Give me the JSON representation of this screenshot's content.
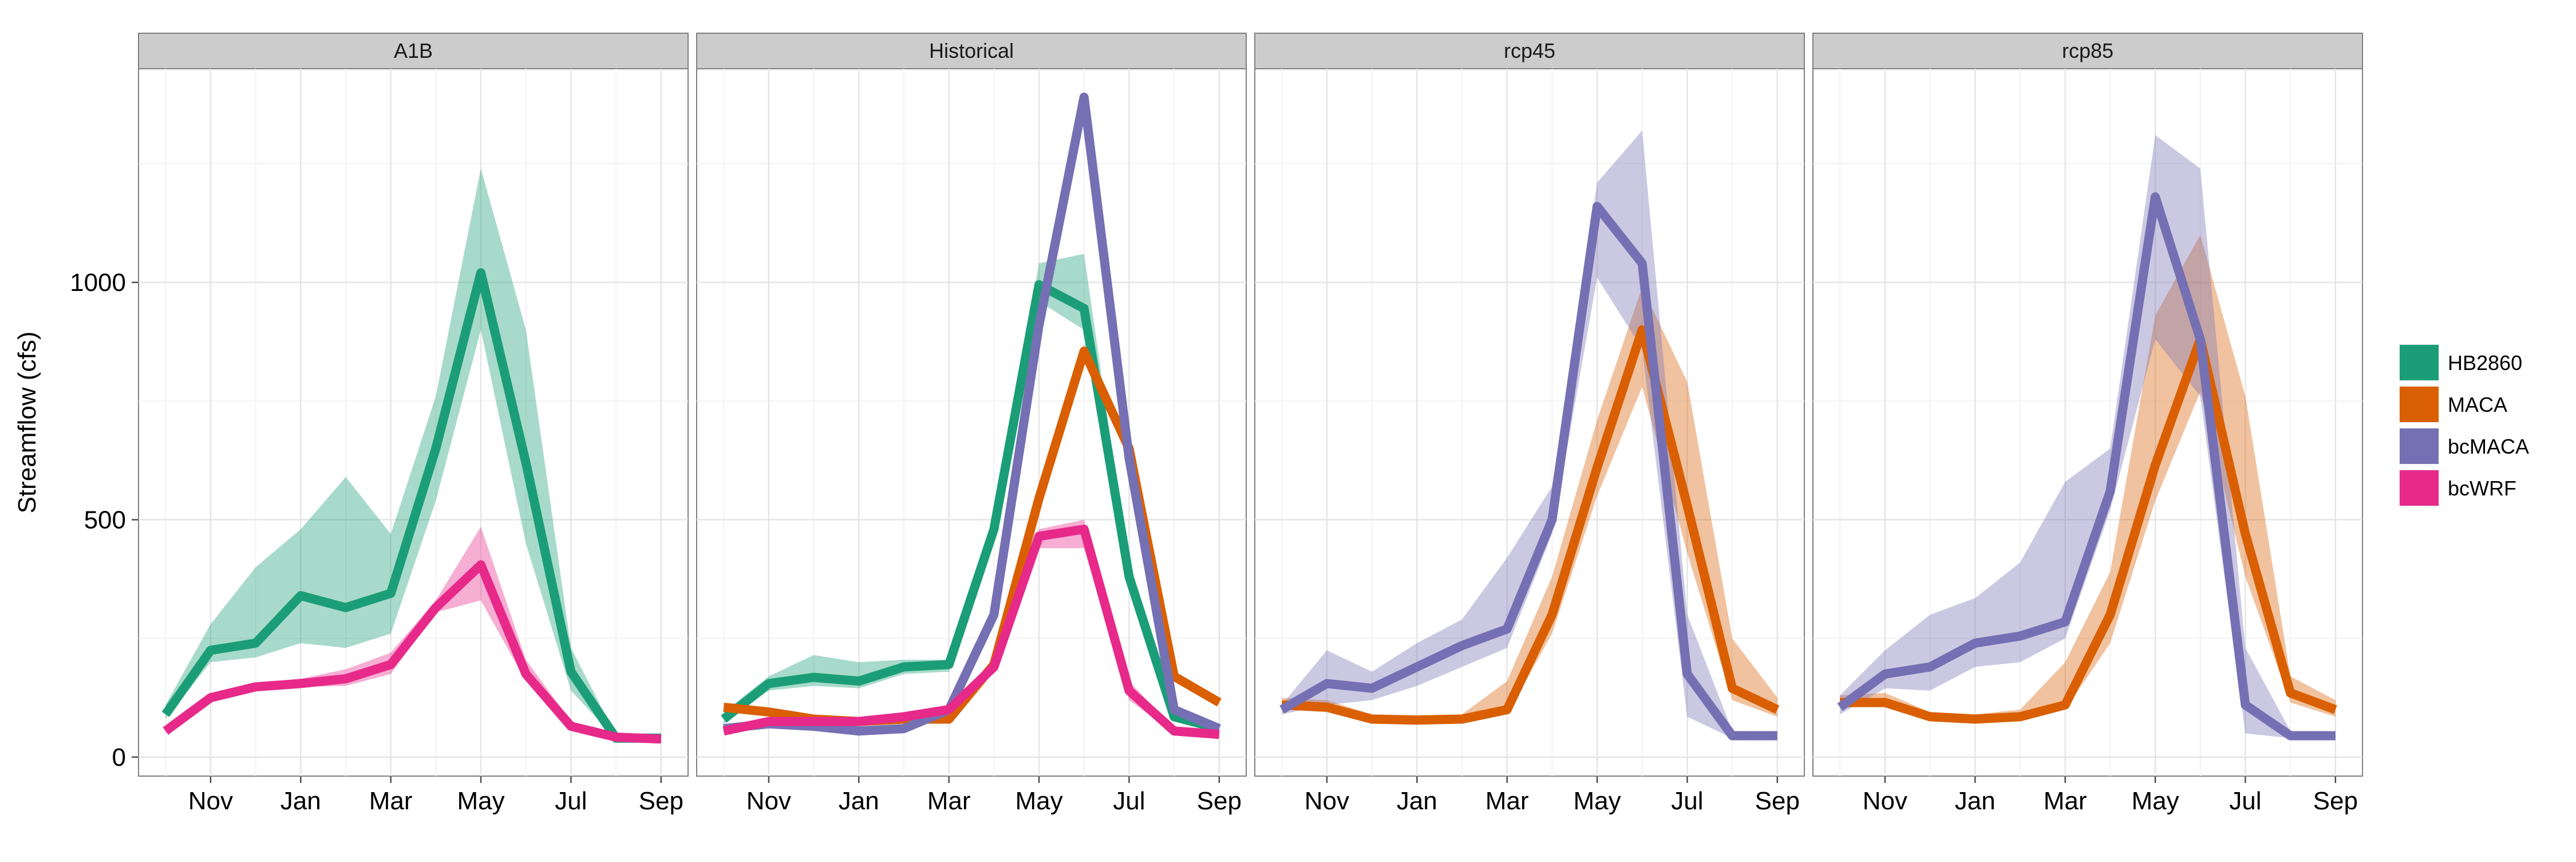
{
  "chart_data": {
    "type": "line",
    "ylabel": "Streamflow (cfs)",
    "xlabel": "",
    "x_tick_labels": [
      "Nov",
      "Jan",
      "Mar",
      "May",
      "Jul",
      "Sep"
    ],
    "x_tick_positions": [
      2,
      4,
      6,
      8,
      10,
      12
    ],
    "y_ticks": [
      0,
      500,
      1000
    ],
    "ylim": [
      -40,
      1450
    ],
    "xlim": [
      0.4,
      12.6
    ],
    "grid": true,
    "legend_position": "right",
    "legend": [
      {
        "name": "HB2860",
        "color": "#1b9e77"
      },
      {
        "name": "MACA",
        "color": "#d95f02"
      },
      {
        "name": "bcMACA",
        "color": "#7570b3"
      },
      {
        "name": "bcWRF",
        "color": "#e7298a"
      }
    ],
    "months": [
      1,
      2,
      3,
      4,
      5,
      6,
      7,
      8,
      9,
      10,
      11,
      12
    ],
    "panels": [
      {
        "title": "A1B",
        "series": [
          {
            "name": "HB2860",
            "color": "#1b9e77",
            "mean": [
              90,
              225,
              240,
              340,
              315,
              345,
              650,
              1020,
              620,
              180,
              40,
              40
            ],
            "min": [
              80,
              200,
              210,
              240,
              230,
              260,
              540,
              900,
              450,
              140,
              38,
              38
            ],
            "max": [
              110,
              280,
              400,
              480,
              590,
              470,
              760,
              1240,
              900,
              230,
              45,
              42
            ]
          },
          {
            "name": "bcWRF",
            "color": "#e7298a",
            "mean": [
              55,
              125,
              148,
              155,
              165,
              195,
              315,
              405,
              175,
              65,
              42,
              38
            ],
            "min": [
              50,
              115,
              140,
              148,
              150,
              175,
              305,
              330,
              160,
              60,
              40,
              36
            ],
            "max": [
              65,
              135,
              155,
              165,
              185,
              220,
              330,
              485,
              205,
              75,
              44,
              40
            ]
          }
        ]
      },
      {
        "title": "Historical",
        "series": [
          {
            "name": "HB2860",
            "color": "#1b9e77",
            "mean": [
              80,
              155,
              168,
              160,
              190,
              195,
              480,
              995,
              945,
              380,
              85,
              60
            ],
            "min": [
              70,
              140,
              150,
              145,
              175,
              180,
              470,
              960,
              900,
              360,
              75,
              55
            ],
            "max": [
              95,
              170,
              215,
              200,
              205,
              205,
              490,
              1040,
              1060,
              400,
              95,
              65
            ]
          },
          {
            "name": "MACA",
            "color": "#d95f02",
            "mean": [
              105,
              95,
              80,
              75,
              80,
              80,
              195,
              545,
              855,
              650,
              170,
              115
            ],
            "min": [
              100,
              90,
              75,
              70,
              75,
              75,
              190,
              530,
              840,
              640,
              165,
              110
            ],
            "max": [
              110,
              100,
              85,
              80,
              85,
              85,
              200,
              560,
              870,
              660,
              175,
              120
            ]
          },
          {
            "name": "bcMACA",
            "color": "#7570b3",
            "mean": [
              60,
              70,
              65,
              55,
              60,
              100,
              300,
              910,
              1390,
              630,
              100,
              60
            ],
            "min": [
              55,
              65,
              60,
              50,
              55,
              95,
              295,
              900,
              1380,
              620,
              95,
              55
            ],
            "max": [
              65,
              75,
              70,
              60,
              65,
              105,
              305,
              920,
              1400,
              640,
              105,
              65
            ]
          },
          {
            "name": "bcWRF",
            "color": "#e7298a",
            "mean": [
              55,
              75,
              75,
              75,
              85,
              100,
              190,
              465,
              480,
              140,
              55,
              48
            ],
            "min": [
              50,
              70,
              70,
              70,
              80,
              90,
              185,
              440,
              440,
              120,
              50,
              45
            ],
            "max": [
              60,
              80,
              80,
              80,
              95,
              110,
              200,
              480,
              500,
              160,
              60,
              52
            ]
          }
        ]
      },
      {
        "title": "rcp45",
        "series": [
          {
            "name": "MACA",
            "color": "#d95f02",
            "mean": [
              110,
              105,
              80,
              78,
              80,
              100,
              300,
              610,
              900,
              530,
              145,
              100
            ],
            "min": [
              100,
              95,
              72,
              70,
              72,
              90,
              260,
              550,
              780,
              430,
              120,
              85
            ],
            "max": [
              125,
              120,
              90,
              88,
              90,
              160,
              380,
              710,
              990,
              790,
              250,
              125
            ]
          },
          {
            "name": "bcMACA",
            "color": "#7570b3",
            "mean": [
              100,
              155,
              145,
              190,
              235,
              270,
              500,
              1160,
              1040,
              175,
              45,
              45
            ],
            "min": [
              90,
              110,
              120,
              150,
              190,
              230,
              470,
              1010,
              860,
              85,
              40,
              40
            ],
            "max": [
              110,
              225,
              180,
              240,
              290,
              420,
              570,
              1210,
              1320,
              300,
              55,
              50
            ]
          }
        ]
      },
      {
        "title": "rcp85",
        "series": [
          {
            "name": "MACA",
            "color": "#d95f02",
            "mean": [
              115,
              115,
              85,
              80,
              85,
              110,
              300,
              615,
              880,
              470,
              135,
              100
            ],
            "min": [
              105,
              105,
              77,
              72,
              77,
              100,
              240,
              540,
              770,
              380,
              115,
              85
            ],
            "max": [
              130,
              135,
              95,
              90,
              100,
              200,
              390,
              930,
              1100,
              760,
              170,
              120
            ]
          },
          {
            "name": "bcMACA",
            "color": "#7570b3",
            "mean": [
              105,
              175,
              190,
              240,
              255,
              285,
              560,
              1180,
              880,
              110,
              45,
              45
            ],
            "min": [
              90,
              145,
              140,
              190,
              200,
              250,
              520,
              880,
              760,
              50,
              40,
              40
            ],
            "max": [
              130,
              225,
              300,
              335,
              410,
              580,
              650,
              1310,
              1240,
              230,
              55,
              50
            ]
          }
        ]
      }
    ]
  }
}
